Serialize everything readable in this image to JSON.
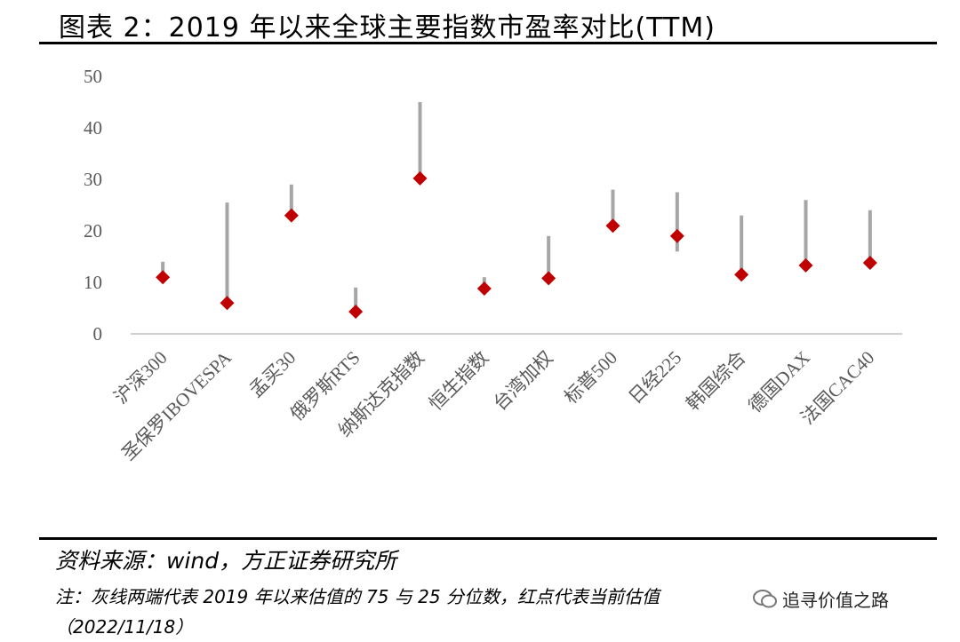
{
  "header": {
    "title": "图表 2：2019 年以来全球主要指数市盈率对比(TTM)"
  },
  "footer": {
    "source": "资料来源：wind，方正证券研究所",
    "note": "注：灰线两端代表 2019 年以来估值的 75 与 25 分位数，红点代表当前估值",
    "date": "（2022/11/18）",
    "watermark": "追寻价值之路"
  },
  "chart_data": {
    "type": "scatter",
    "categories": [
      "沪深300",
      "圣保罗IBOVESPA",
      "孟买30",
      "俄罗斯RTS",
      "纳斯达克指数",
      "恒生指数",
      "台湾加权",
      "标普500",
      "日经225",
      "韩国综合",
      "德国DAX",
      "法国CAC40"
    ],
    "series": [
      {
        "kind": "range",
        "low": [
          11,
          6,
          23,
          4,
          30,
          9,
          11,
          21,
          16,
          12,
          13,
          14
        ],
        "high": [
          14,
          25.5,
          29,
          9,
          45,
          11,
          19,
          28,
          27.5,
          23,
          26,
          24
        ]
      },
      {
        "kind": "point",
        "values": [
          11,
          6,
          23,
          4.3,
          30.2,
          8.8,
          10.8,
          21,
          19,
          11.5,
          13.3,
          13.8
        ]
      }
    ],
    "ylim": [
      0,
      50
    ],
    "yticks": [
      0,
      10,
      20,
      30,
      40,
      50
    ],
    "colors": {
      "range": "#a6a6a6",
      "point": "#c00000",
      "axis": "#bfbfbf"
    }
  }
}
